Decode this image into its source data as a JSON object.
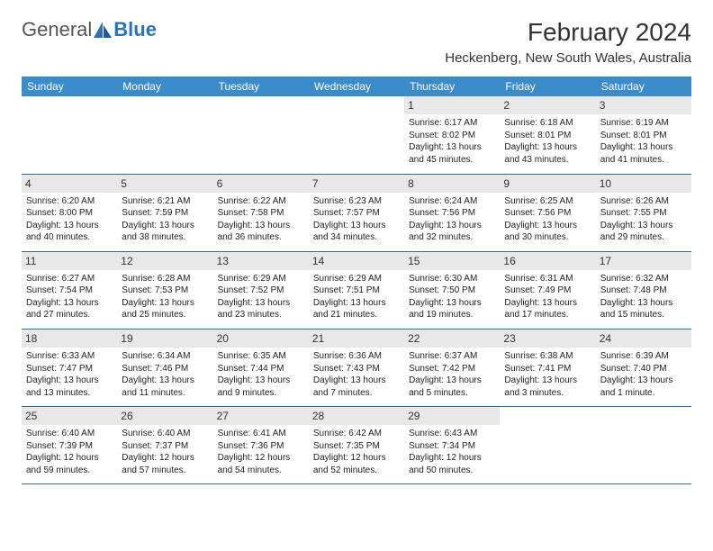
{
  "logo": {
    "text1": "General",
    "text2": "Blue"
  },
  "title": "February 2024",
  "location": "Heckenberg, New South Wales, Australia",
  "colors": {
    "header_bg": "#3b8bc9",
    "header_text": "#ffffff",
    "daynum_bg": "#e8e8e8",
    "border": "#3b6b8f",
    "logo_blue": "#2d72b8"
  },
  "dayNames": [
    "Sunday",
    "Monday",
    "Tuesday",
    "Wednesday",
    "Thursday",
    "Friday",
    "Saturday"
  ],
  "weeks": [
    [
      null,
      null,
      null,
      null,
      {
        "n": "1",
        "sr": "6:17 AM",
        "ss": "8:02 PM",
        "dl": "13 hours and 45 minutes."
      },
      {
        "n": "2",
        "sr": "6:18 AM",
        "ss": "8:01 PM",
        "dl": "13 hours and 43 minutes."
      },
      {
        "n": "3",
        "sr": "6:19 AM",
        "ss": "8:01 PM",
        "dl": "13 hours and 41 minutes."
      }
    ],
    [
      {
        "n": "4",
        "sr": "6:20 AM",
        "ss": "8:00 PM",
        "dl": "13 hours and 40 minutes."
      },
      {
        "n": "5",
        "sr": "6:21 AM",
        "ss": "7:59 PM",
        "dl": "13 hours and 38 minutes."
      },
      {
        "n": "6",
        "sr": "6:22 AM",
        "ss": "7:58 PM",
        "dl": "13 hours and 36 minutes."
      },
      {
        "n": "7",
        "sr": "6:23 AM",
        "ss": "7:57 PM",
        "dl": "13 hours and 34 minutes."
      },
      {
        "n": "8",
        "sr": "6:24 AM",
        "ss": "7:56 PM",
        "dl": "13 hours and 32 minutes."
      },
      {
        "n": "9",
        "sr": "6:25 AM",
        "ss": "7:56 PM",
        "dl": "13 hours and 30 minutes."
      },
      {
        "n": "10",
        "sr": "6:26 AM",
        "ss": "7:55 PM",
        "dl": "13 hours and 29 minutes."
      }
    ],
    [
      {
        "n": "11",
        "sr": "6:27 AM",
        "ss": "7:54 PM",
        "dl": "13 hours and 27 minutes."
      },
      {
        "n": "12",
        "sr": "6:28 AM",
        "ss": "7:53 PM",
        "dl": "13 hours and 25 minutes."
      },
      {
        "n": "13",
        "sr": "6:29 AM",
        "ss": "7:52 PM",
        "dl": "13 hours and 23 minutes."
      },
      {
        "n": "14",
        "sr": "6:29 AM",
        "ss": "7:51 PM",
        "dl": "13 hours and 21 minutes."
      },
      {
        "n": "15",
        "sr": "6:30 AM",
        "ss": "7:50 PM",
        "dl": "13 hours and 19 minutes."
      },
      {
        "n": "16",
        "sr": "6:31 AM",
        "ss": "7:49 PM",
        "dl": "13 hours and 17 minutes."
      },
      {
        "n": "17",
        "sr": "6:32 AM",
        "ss": "7:48 PM",
        "dl": "13 hours and 15 minutes."
      }
    ],
    [
      {
        "n": "18",
        "sr": "6:33 AM",
        "ss": "7:47 PM",
        "dl": "13 hours and 13 minutes."
      },
      {
        "n": "19",
        "sr": "6:34 AM",
        "ss": "7:46 PM",
        "dl": "13 hours and 11 minutes."
      },
      {
        "n": "20",
        "sr": "6:35 AM",
        "ss": "7:44 PM",
        "dl": "13 hours and 9 minutes."
      },
      {
        "n": "21",
        "sr": "6:36 AM",
        "ss": "7:43 PM",
        "dl": "13 hours and 7 minutes."
      },
      {
        "n": "22",
        "sr": "6:37 AM",
        "ss": "7:42 PM",
        "dl": "13 hours and 5 minutes."
      },
      {
        "n": "23",
        "sr": "6:38 AM",
        "ss": "7:41 PM",
        "dl": "13 hours and 3 minutes."
      },
      {
        "n": "24",
        "sr": "6:39 AM",
        "ss": "7:40 PM",
        "dl": "13 hours and 1 minute."
      }
    ],
    [
      {
        "n": "25",
        "sr": "6:40 AM",
        "ss": "7:39 PM",
        "dl": "12 hours and 59 minutes."
      },
      {
        "n": "26",
        "sr": "6:40 AM",
        "ss": "7:37 PM",
        "dl": "12 hours and 57 minutes."
      },
      {
        "n": "27",
        "sr": "6:41 AM",
        "ss": "7:36 PM",
        "dl": "12 hours and 54 minutes."
      },
      {
        "n": "28",
        "sr": "6:42 AM",
        "ss": "7:35 PM",
        "dl": "12 hours and 52 minutes."
      },
      {
        "n": "29",
        "sr": "6:43 AM",
        "ss": "7:34 PM",
        "dl": "12 hours and 50 minutes."
      },
      null,
      null
    ]
  ],
  "labels": {
    "sunrise": "Sunrise:",
    "sunset": "Sunset:",
    "daylight": "Daylight:"
  }
}
